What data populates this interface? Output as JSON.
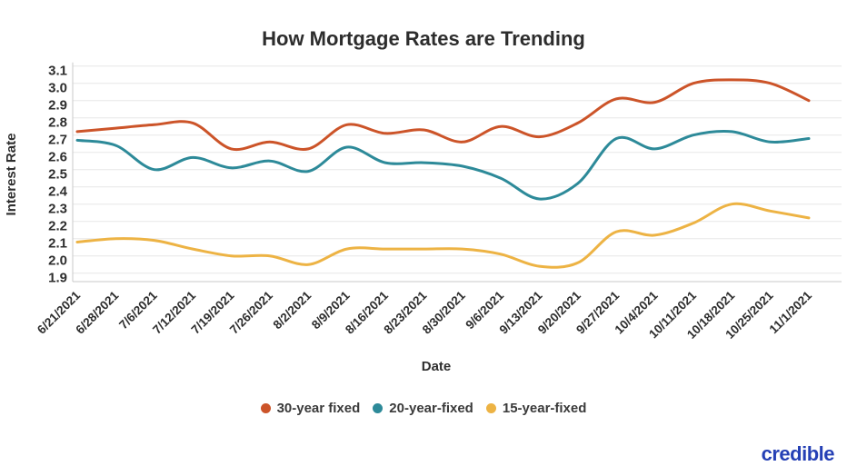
{
  "title": "How Mortgage Rates are Trending",
  "branding": {
    "logo_text": "credible",
    "logo_color": "#2540b5"
  },
  "colors": {
    "grid": "#e7e7e7",
    "axis_line": "#c9c9c9",
    "tick_text": "#2e2e2e",
    "title_text": "#2d2d2d"
  },
  "chart_data": {
    "type": "line",
    "title": "How Mortgage Rates are Trending",
    "xlabel": "Date",
    "ylabel": "Interest Rate",
    "ylim": [
      1.9,
      3.1
    ],
    "ytick_step": 0.1,
    "grid": true,
    "legend_position": "bottom",
    "categories": [
      "6/21/2021",
      "6/28/2021",
      "7/6/2021",
      "7/12/2021",
      "7/19/2021",
      "7/26/2021",
      "8/2/2021",
      "8/9/2021",
      "8/16/2021",
      "8/23/2021",
      "8/30/2021",
      "9/6/2021",
      "9/13/2021",
      "9/20/2021",
      "9/27/2021",
      "10/4/2021",
      "10/11/2021",
      "10/18/2021",
      "10/25/2021",
      "11/1/2021"
    ],
    "series": [
      {
        "name": "30-year fixed",
        "color": "#cc5429",
        "values": [
          2.72,
          2.74,
          2.76,
          2.77,
          2.62,
          2.66,
          2.62,
          2.76,
          2.71,
          2.73,
          2.66,
          2.75,
          2.69,
          2.77,
          2.91,
          2.89,
          3.0,
          3.02,
          3.0,
          2.9
        ]
      },
      {
        "name": "20-year-fixed",
        "color": "#2d8a99",
        "values": [
          2.67,
          2.64,
          2.5,
          2.57,
          2.51,
          2.55,
          2.49,
          2.63,
          2.54,
          2.54,
          2.52,
          2.45,
          2.33,
          2.42,
          2.68,
          2.62,
          2.7,
          2.72,
          2.66,
          2.68
        ]
      },
      {
        "name": "15-year-fixed",
        "color": "#edb344",
        "values": [
          2.08,
          2.1,
          2.09,
          2.04,
          2.0,
          2.0,
          1.95,
          2.04,
          2.04,
          2.04,
          2.04,
          2.01,
          1.94,
          1.96,
          2.14,
          2.12,
          2.19,
          2.3,
          2.26,
          2.22
        ]
      }
    ]
  }
}
